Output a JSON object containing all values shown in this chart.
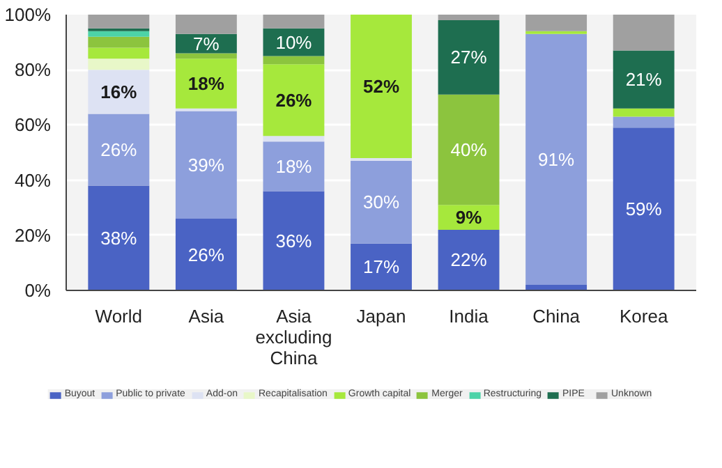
{
  "chart_data": {
    "type": "bar",
    "stacked": true,
    "categories": [
      "World",
      "Asia",
      "Asia\nexcluding\nChina",
      "Japan",
      "India",
      "China",
      "Korea"
    ],
    "ylim": [
      0,
      100
    ],
    "yticks": [
      {
        "value": 0,
        "label": "0%"
      },
      {
        "value": 20,
        "label": "20%"
      },
      {
        "value": 40,
        "label": "40%"
      },
      {
        "value": 60,
        "label": "60%"
      },
      {
        "value": 80,
        "label": "80%"
      },
      {
        "value": 100,
        "label": "100%"
      }
    ],
    "grid": "y",
    "legend": "bottom",
    "series": [
      {
        "name": "Buyout",
        "color": "#4a63c4",
        "values": [
          38,
          26,
          36,
          17,
          22,
          2,
          59
        ],
        "value_labels": [
          "38%",
          "26%",
          "36%",
          "17%",
          "22%",
          null,
          "59%"
        ]
      },
      {
        "name": "Public to private",
        "color": "#8d9fdc",
        "values": [
          26,
          39,
          18,
          30,
          0,
          91,
          4
        ],
        "value_labels": [
          "26%",
          "39%",
          "18%",
          "30%",
          null,
          "91%",
          null
        ]
      },
      {
        "name": "Add-on",
        "color": "#dde2f3",
        "values": [
          16,
          1,
          2,
          1,
          0,
          0,
          0
        ],
        "value_labels": [
          "16%",
          null,
          null,
          null,
          null,
          null,
          null
        ]
      },
      {
        "name": "Recapitalisation",
        "color": "#e8f7c8",
        "values": [
          4,
          0,
          0,
          0,
          0,
          0,
          0
        ]
      },
      {
        "name": "Growth capital",
        "color": "#a6e83c",
        "values": [
          4,
          18,
          26,
          52,
          9,
          1,
          3
        ],
        "value_labels": [
          null,
          "18%",
          "26%",
          "52%",
          "9%",
          null,
          null
        ]
      },
      {
        "name": "Merger",
        "color": "#8cc43e",
        "values": [
          4,
          2,
          3,
          0,
          40,
          0,
          0
        ],
        "value_labels": [
          null,
          null,
          null,
          null,
          "40%",
          null,
          null
        ]
      },
      {
        "name": "Restructuring",
        "color": "#4dd3a8",
        "values": [
          2,
          0,
          0,
          0,
          0,
          0,
          0
        ]
      },
      {
        "name": "PIPE",
        "color": "#1e6e50",
        "values": [
          1,
          7,
          10,
          0,
          27,
          0,
          21
        ],
        "value_labels": [
          null,
          "7%",
          "10%",
          null,
          "27%",
          null,
          "21%"
        ]
      },
      {
        "name": "Unknown",
        "color": "#a0a0a0",
        "values": [
          5,
          7,
          5,
          0,
          2,
          6,
          13
        ]
      }
    ]
  }
}
